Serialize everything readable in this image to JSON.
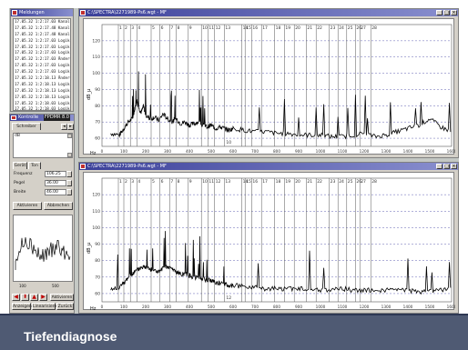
{
  "left_window": {
    "title": "Meldungen",
    "messages": [
      "17.05.32 1:2:17.03  Kanal 3",
      "17.05.32 1:2:17.48  Kanal 4",
      "17.05.32 1:2:17.48  Kanal 4",
      "17.05.32 1:2:17.03  Logik p",
      "17.05.32 1:2:17.03  Logik p",
      "17.05.32 1:2:17.03  Logik p",
      "17.05.32 1:2:17.03  Änderun",
      "17.05.32 1:2:17.03  Logik p",
      "17.05.32 1:2:17.03  Logik Lo",
      "17.05.32 1:2:18.13  Änderun",
      "17.05.32 1:2:18.13  Logik p",
      "17.05.32 1:2:18.13  Logik p",
      "17.05.32 1:2:18.13  Logik p",
      "17.05.32 1:2:18.03  Logik p",
      "17.05.32 1:2:18.03  Logik p",
      "17.05.32 1:2:18.03  Logik p"
    ]
  },
  "control": {
    "title": "Kontrolle",
    "title_badge": "FPDMR 8.0",
    "tab_top": "Schreiber",
    "list_item": "dB",
    "tabs": [
      "Gerät",
      "Ton"
    ],
    "labels": [
      "Frequenz",
      "Pegel",
      "Breite"
    ],
    "values": [
      "106.25",
      "36.00",
      "46.00"
    ],
    "buttons_mid": [
      "Aktivieren",
      "Abbrechen"
    ],
    "bottom_buttons_row1_label": "Aktivieren",
    "bottom_buttons_row2": [
      "Anzeigen",
      "Linearisieren",
      "Zurück"
    ],
    "mini_ticks": [
      "100",
      "500"
    ]
  },
  "spectrum_top": {
    "title": "C:\\SPECTRA\\2271989-Ps6.wgt - MF",
    "ylabel": "dB_µ",
    "xlabel": "Hz",
    "peak_label": "10",
    "channel_numbers": [
      "1",
      "2",
      "3",
      "4",
      "5",
      "6",
      "7",
      "8",
      "9",
      "10",
      "11",
      "12",
      "13",
      "14",
      "15",
      "16",
      "17",
      "18",
      "19",
      "20",
      "21",
      "22",
      "23",
      "24",
      "25",
      "26",
      "27",
      "28"
    ]
  },
  "spectrum_bottom": {
    "title": "C:\\SPECTRA\\2271989-Ps6.wgt - MF",
    "ylabel": "dB_µ",
    "xlabel": "Hz",
    "peak_label": "12",
    "channel_numbers": [
      "1",
      "2",
      "3",
      "4",
      "5",
      "6",
      "7",
      "8",
      "9",
      "10",
      "11",
      "12",
      "13",
      "14",
      "15",
      "16",
      "17",
      "18",
      "19",
      "20",
      "21",
      "22",
      "23",
      "24",
      "25",
      "26",
      "27",
      "28"
    ]
  },
  "chart_data": [
    {
      "type": "line",
      "title": "C:\\SPECTRA\\2271989-Ps6.wgt - MF",
      "xlabel": "Hz",
      "ylabel": "dB_µ",
      "xlim": [
        0,
        1600
      ],
      "ylim": [
        55,
        130
      ],
      "x_ticks": [
        "0",
        "100",
        "200",
        "300",
        "400",
        "500",
        "600",
        "700",
        "800",
        "900",
        "1000",
        "1100",
        "1200",
        "1300",
        "1400",
        "1500",
        "1600"
      ],
      "y_ticks": [
        "60",
        "70",
        "80",
        "90",
        "100",
        "110",
        "120"
      ],
      "grid": true,
      "series": [
        {
          "x": [
            40,
            80,
            100,
            120,
            140,
            150,
            160,
            170,
            180,
            190,
            200,
            220,
            240,
            260,
            280,
            300,
            320,
            340,
            360,
            380,
            400,
            420,
            440,
            460,
            480,
            500,
            520,
            540,
            560,
            580,
            600,
            650,
            700,
            750,
            800,
            850,
            900,
            950,
            1000,
            1050,
            1100,
            1150,
            1200,
            1250,
            1300,
            1350,
            1400,
            1450,
            1500,
            1550,
            1600
          ],
          "y": [
            63,
            62,
            66,
            70,
            72,
            78,
            84,
            78,
            76,
            80,
            74,
            72,
            73,
            71,
            75,
            72,
            70,
            72,
            69,
            70,
            68,
            69,
            70,
            68,
            67,
            68,
            66,
            67,
            66,
            65,
            66,
            65,
            64,
            64,
            63,
            63,
            62,
            62,
            62,
            61,
            61,
            62,
            63,
            61,
            62,
            64,
            66,
            68,
            72,
            67,
            64
          ]
        }
      ],
      "channel_lines_x": [
        75,
        100,
        130,
        160,
        225,
        265,
        310,
        340,
        395,
        455,
        485,
        515,
        560,
        640,
        655,
        685,
        730,
        790,
        835,
        880,
        935,
        980,
        1040,
        1080,
        1120,
        1160,
        1180,
        1230
      ]
    },
    {
      "type": "line",
      "title": "C:\\SPECTRA\\2271989-Ps6.wgt - MF",
      "xlabel": "Hz",
      "ylabel": "dB_µ",
      "xlim": [
        0,
        1600
      ],
      "ylim": [
        55,
        130
      ],
      "x_ticks": [
        "0",
        "100",
        "200",
        "300",
        "400",
        "500",
        "600",
        "700",
        "800",
        "900",
        "1000",
        "1100",
        "1200",
        "1300",
        "1400",
        "1500",
        "1600"
      ],
      "y_ticks": [
        "60",
        "70",
        "80",
        "90",
        "100",
        "110",
        "120"
      ],
      "grid": true,
      "series": [
        {
          "x": [
            40,
            80,
            100,
            120,
            140,
            160,
            180,
            200,
            220,
            240,
            260,
            280,
            300,
            320,
            340,
            360,
            380,
            400,
            420,
            440,
            460,
            480,
            500,
            520,
            540,
            560,
            580,
            600,
            650,
            700,
            750,
            800,
            850,
            900,
            950,
            1000,
            1050,
            1100,
            1150,
            1200,
            1250,
            1300,
            1350,
            1400,
            1450,
            1500,
            1550,
            1600
          ],
          "y": [
            62,
            64,
            66,
            70,
            72,
            74,
            76,
            76,
            75,
            74,
            73,
            75,
            76,
            75,
            73,
            72,
            72,
            71,
            70,
            70,
            69,
            68,
            68,
            67,
            66,
            66,
            65,
            65,
            64,
            64,
            63,
            63,
            63,
            63,
            62,
            62,
            62,
            63,
            62,
            62,
            62,
            62,
            62,
            62,
            61,
            62,
            62,
            63
          ]
        }
      ],
      "channel_lines_x": [
        75,
        100,
        130,
        160,
        225,
        265,
        310,
        340,
        395,
        455,
        485,
        515,
        560,
        640,
        655,
        685,
        730,
        790,
        835,
        880,
        935,
        980,
        1040,
        1080,
        1120,
        1160,
        1180,
        1230
      ]
    }
  ],
  "caption": "Tiefendiagnose",
  "colors": {
    "title_gradient_start": "#3a3f99",
    "trace": "#000000",
    "grid": "#3a3aa0",
    "caption_bg": "#4f5a73"
  }
}
